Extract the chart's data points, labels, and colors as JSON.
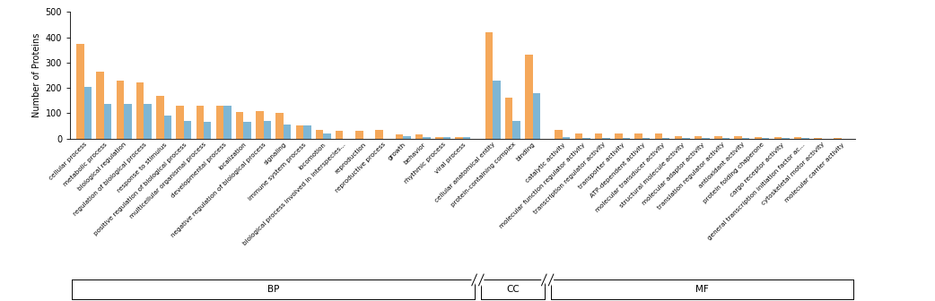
{
  "BP_categories": [
    "cellular process",
    "metabolic process",
    "biological regulation",
    "regulation of biological process",
    "response to stimulus",
    "positive regulation of biological process",
    "multicellular organismal process",
    "developmental process",
    "localization",
    "negative regulation of biological process",
    "signaling",
    "immune system process",
    "locomotion",
    "biological process involved in interspecies...",
    "reproduction",
    "reproductive process",
    "growth",
    "behavior",
    "rhythmic process",
    "viral process"
  ],
  "BP_up": [
    375,
    265,
    230,
    220,
    170,
    130,
    130,
    130,
    105,
    110,
    100,
    50,
    35,
    30,
    30,
    35,
    15,
    15,
    5,
    5
  ],
  "BP_down": [
    205,
    135,
    135,
    135,
    90,
    70,
    65,
    130,
    65,
    70,
    55,
    50,
    20,
    0,
    0,
    0,
    10,
    5,
    5,
    5
  ],
  "CC_categories": [
    "cellular anatomical entity",
    "protein-containing complex",
    "binding"
  ],
  "CC_up": [
    420,
    160,
    330
  ],
  "CC_down": [
    230,
    70,
    180
  ],
  "MF_categories": [
    "catalytic activity",
    "molecular function regulator activity",
    "transcription regulator activity",
    "transporter activity",
    "ATP-dependent activity",
    "molecular transducer activity",
    "structural molecule activity",
    "molecular adaptor activity",
    "translation regulator activity",
    "antioxidant activity",
    "protein folding chaperone",
    "cargo receptor activity",
    "general transcription initiation factor ac...",
    "cytoskeletal motor activity",
    "molecular carrier activity"
  ],
  "MF_up": [
    35,
    18,
    18,
    18,
    18,
    18,
    10,
    10,
    8,
    8,
    5,
    5,
    5,
    3,
    3
  ],
  "MF_down": [
    5,
    3,
    3,
    3,
    3,
    3,
    3,
    3,
    2,
    2,
    2,
    2,
    2,
    0,
    0
  ],
  "up_color": "#F5A85A",
  "down_color": "#7EB6D4",
  "ylabel": "Number of Proteins",
  "ylim": [
    0,
    500
  ],
  "yticks": [
    0,
    100,
    200,
    300,
    400,
    500
  ]
}
